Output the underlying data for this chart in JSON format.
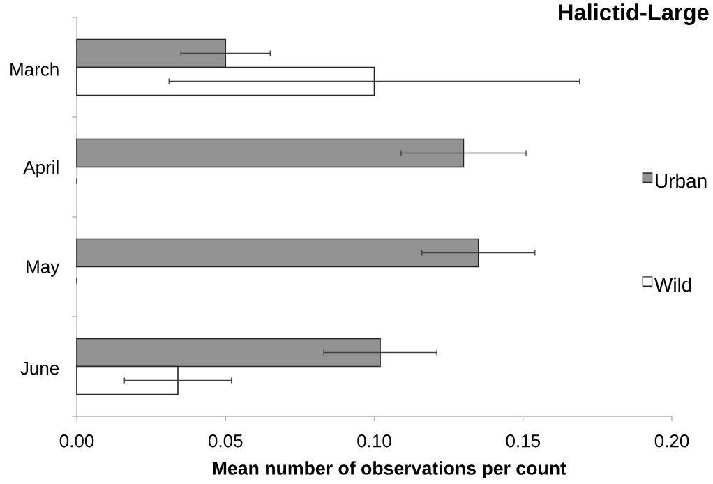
{
  "chart_data": {
    "type": "bar",
    "orientation": "horizontal",
    "title": "Halictid-Large",
    "xlabel": "Mean number of observations per count",
    "categories": [
      "March",
      "April",
      "May",
      "June"
    ],
    "series": [
      {
        "name": "Urban",
        "color": "#939393",
        "values": [
          0.05,
          0.13,
          0.135,
          0.102
        ],
        "errors": [
          0.015,
          0.021,
          0.019,
          0.019
        ]
      },
      {
        "name": "Wild",
        "color": "#ffffff",
        "values": [
          0.1,
          0,
          0,
          0.034
        ],
        "errors": [
          0.069,
          0,
          0,
          0.018
        ]
      }
    ],
    "xlim": [
      0,
      0.2
    ],
    "xticks": [
      {
        "value": 0,
        "label": "0.00"
      },
      {
        "value": 0.05,
        "label": "0.05"
      },
      {
        "value": 0.1,
        "label": "0.10"
      },
      {
        "value": 0.15,
        "label": "0.15"
      },
      {
        "value": 0.2,
        "label": "0.20"
      }
    ],
    "legend": "right"
  }
}
